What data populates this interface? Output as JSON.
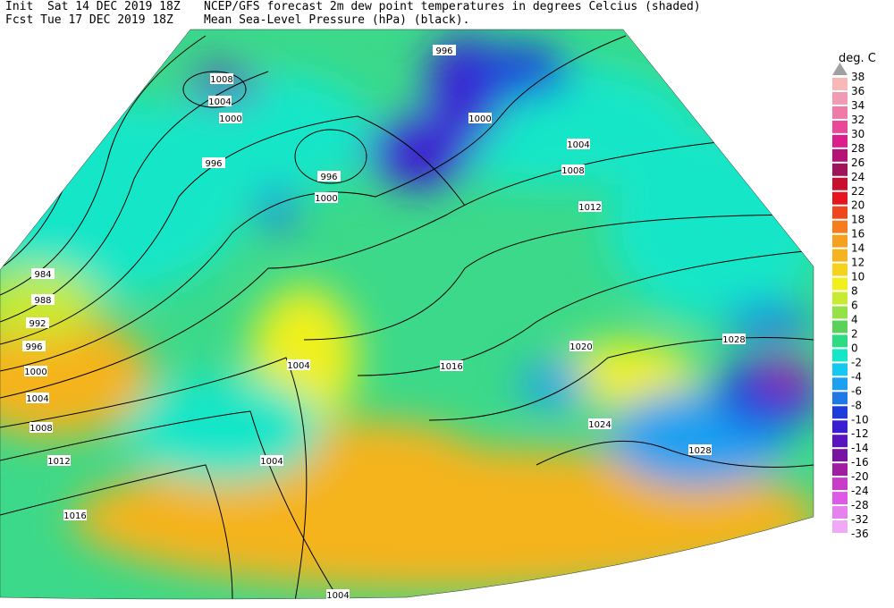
{
  "header": {
    "init": "Init  Sat 14 DEC 2019 18Z",
    "fcst": "Fcst Tue 17 DEC 2019 18Z",
    "title": "NCEP/GFS forecast 2m dew point temperatures in degrees Celcius (shaded)",
    "subtitle": "Mean Sea-Level Pressure (hPa) (black)."
  },
  "colorbar": {
    "title": "deg. C",
    "labels": [
      "38",
      "36",
      "34",
      "32",
      "30",
      "28",
      "26",
      "24",
      "22",
      "20",
      "18",
      "16",
      "14",
      "12",
      "10",
      "8",
      "6",
      "4",
      "2",
      "0",
      "-2",
      "-4",
      "-6",
      "-8",
      "-10",
      "-12",
      "-14",
      "-16",
      "-20",
      "-24",
      "-28",
      "-32",
      "-36"
    ],
    "colors": [
      "#a0a0a0",
      "#f8b8b8",
      "#f29ab4",
      "#ef7aa8",
      "#e9489a",
      "#dc1e8c",
      "#b41478",
      "#a0145a",
      "#c8102e",
      "#e6141e",
      "#f0461e",
      "#f57d1e",
      "#f5a01e",
      "#f5b41e",
      "#f5d21e",
      "#f0f01e",
      "#c8eb32",
      "#96e146",
      "#5ad25a",
      "#2ddc82",
      "#14e6c8",
      "#14c8f0",
      "#1ea0f0",
      "#1e78e6",
      "#1e3cdc",
      "#3c1ed2",
      "#5a14be",
      "#7814a0",
      "#a01ea0",
      "#c83cc8",
      "#dc5ae6",
      "#e682ee",
      "#f0aaf5"
    ]
  },
  "map": {
    "isobar_labels": [
      "1008",
      "1004",
      "1000",
      "996",
      "996",
      "1000",
      "1004",
      "1008",
      "1012",
      "984",
      "988",
      "992",
      "996",
      "1000",
      "1004",
      "1008",
      "1012",
      "1016",
      "1004",
      "1016",
      "1020",
      "1024",
      "1028",
      "1028",
      "1004",
      "1004",
      "1000",
      "996"
    ]
  }
}
